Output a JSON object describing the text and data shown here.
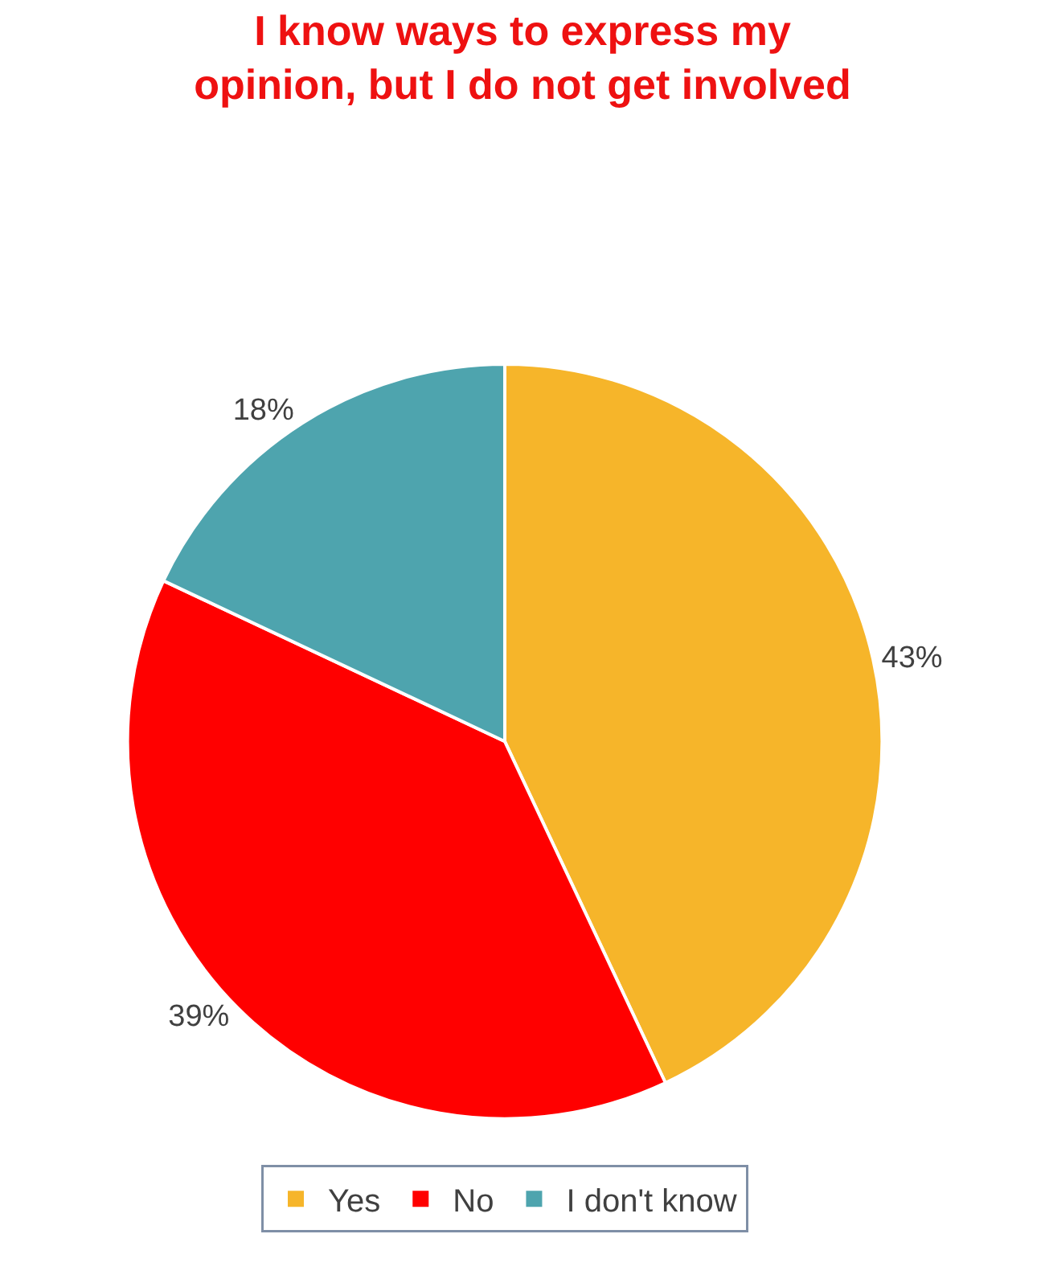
{
  "chart_data": {
    "type": "pie",
    "title": "I know ways to express my\nopinion, but I do not get involved",
    "categories": [
      "Yes",
      "No",
      "I don't know"
    ],
    "values": [
      43,
      39,
      18
    ],
    "value_labels": [
      "43%",
      "39%",
      "18%"
    ],
    "colors": [
      "#f6b52a",
      "#ff0000",
      "#4ea4ae"
    ],
    "legend": "bottom"
  }
}
